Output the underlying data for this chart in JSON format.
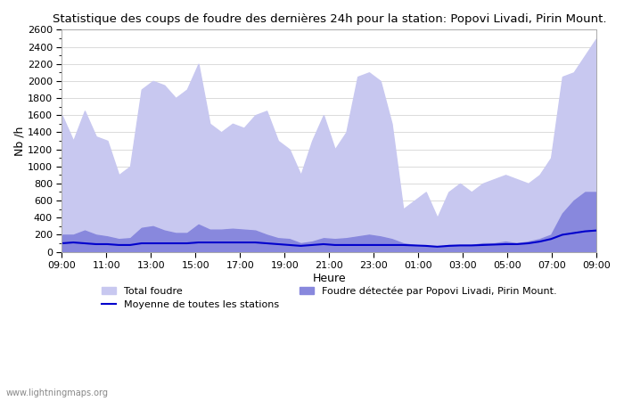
{
  "title": "Statistique des coups de foudre des dernières 24h pour la station: Popovi Livadi, Pirin Mount.",
  "xlabel": "Heure",
  "ylabel": "Nb /h",
  "ylim": [
    0,
    2600
  ],
  "yticks": [
    0,
    200,
    400,
    600,
    800,
    1000,
    1200,
    1400,
    1600,
    1800,
    2000,
    2200,
    2400,
    2600
  ],
  "xtick_labels": [
    "09:00",
    "11:00",
    "13:00",
    "15:00",
    "17:00",
    "19:00",
    "21:00",
    "23:00",
    "01:00",
    "03:00",
    "05:00",
    "07:00",
    "09:00"
  ],
  "color_total": "#c8c8f0",
  "color_detected": "#8888dd",
  "color_mean": "#0000cc",
  "background_color": "#ffffff",
  "watermark": "www.lightningmaps.org",
  "legend_total": "Total foudre",
  "legend_detected": "Foudre détectée par Popovi Livadi, Pirin Mount.",
  "legend_mean": "Moyenne de toutes les stations",
  "total_foudre": [
    1600,
    1300,
    1650,
    1350,
    1300,
    900,
    1000,
    1900,
    2000,
    1950,
    1800,
    1900,
    2200,
    1500,
    1400,
    1500,
    1450,
    1600,
    1650,
    1300,
    1200,
    900,
    1300,
    1600,
    1200,
    1400,
    2050,
    2100,
    2000,
    1500,
    500,
    600,
    700,
    400,
    700,
    800,
    700,
    800,
    850,
    900,
    850,
    800,
    900,
    1100,
    2050,
    2100,
    2300,
    2500
  ],
  "detected_foudre": [
    200,
    200,
    250,
    200,
    180,
    150,
    160,
    280,
    300,
    250,
    220,
    220,
    320,
    260,
    260,
    270,
    260,
    250,
    200,
    160,
    150,
    100,
    120,
    160,
    150,
    160,
    180,
    200,
    180,
    150,
    100,
    80,
    70,
    50,
    80,
    80,
    80,
    100,
    100,
    120,
    100,
    120,
    150,
    200,
    450,
    600,
    700,
    700
  ],
  "mean_line": [
    100,
    110,
    100,
    90,
    90,
    80,
    80,
    100,
    100,
    100,
    100,
    100,
    110,
    110,
    110,
    110,
    110,
    110,
    100,
    90,
    80,
    70,
    80,
    90,
    80,
    80,
    80,
    80,
    80,
    80,
    80,
    75,
    70,
    60,
    70,
    75,
    75,
    80,
    85,
    90,
    90,
    100,
    120,
    150,
    200,
    220,
    240,
    250
  ]
}
